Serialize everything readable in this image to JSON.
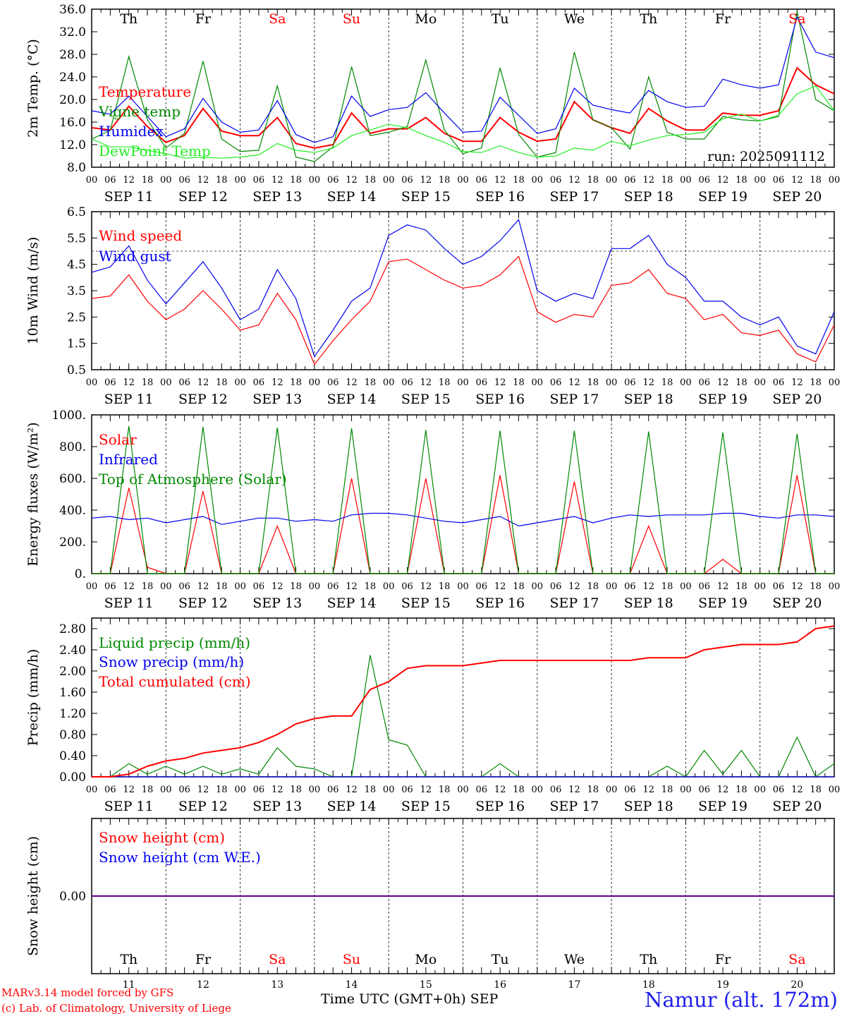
{
  "run_label": "run: 2025091112",
  "footer": {
    "model": "MARv3.14 model forced by GFS",
    "credit": "(c) Lab. of Climatology, University of Liege",
    "time_label": "Time UTC (GMT+0h) SEP",
    "station": "Namur (alt. 172m)"
  },
  "colors": {
    "red": "#ff0000",
    "green": "#008800",
    "blue": "#0000ee",
    "light_green": "#22ee22",
    "weekend": "#ff0000"
  },
  "chart_data": [
    {
      "type": "line",
      "ylabel": "2m Temp. (°C)",
      "ylim": [
        8,
        36
      ],
      "yticks": [
        "8.0",
        "12.0",
        "16.0",
        "20.0",
        "24.0",
        "28.0",
        "32.0",
        "36.0"
      ],
      "x": [
        "2025-09-11 00",
        "2025-09-11 06",
        "2025-09-11 12",
        "2025-09-11 18",
        "2025-09-12 00",
        "2025-09-12 06",
        "2025-09-12 12",
        "2025-09-12 18",
        "2025-09-13 00",
        "2025-09-13 06",
        "2025-09-13 12",
        "2025-09-13 18",
        "2025-09-14 00",
        "2025-09-14 06",
        "2025-09-14 12",
        "2025-09-14 18",
        "2025-09-15 00",
        "2025-09-15 06",
        "2025-09-15 12",
        "2025-09-15 18",
        "2025-09-16 00",
        "2025-09-16 06",
        "2025-09-16 12",
        "2025-09-16 18",
        "2025-09-17 00",
        "2025-09-17 06",
        "2025-09-17 12",
        "2025-09-17 18",
        "2025-09-18 00",
        "2025-09-18 06",
        "2025-09-18 12",
        "2025-09-18 18",
        "2025-09-19 00",
        "2025-09-19 06",
        "2025-09-19 12",
        "2025-09-19 18",
        "2025-09-20 00",
        "2025-09-20 06",
        "2025-09-20 12",
        "2025-09-20 18",
        "2025-09-21 00"
      ],
      "weekdays": [
        "Th",
        "Fr",
        "Sa",
        "Su",
        "Mo",
        "Tu",
        "We",
        "Th",
        "Fr",
        "Sa"
      ],
      "series": [
        {
          "name": "Temperature",
          "color": "red",
          "values": [
            15,
            14.6,
            18.8,
            15.2,
            12.4,
            13.6,
            18.4,
            14.4,
            13.6,
            13.6,
            16.8,
            12.2,
            11.4,
            12,
            17.6,
            14,
            14.8,
            14.8,
            16.8,
            14,
            12.6,
            12.6,
            16.8,
            14.2,
            12.6,
            13,
            19.6,
            16.4,
            15,
            14,
            18.4,
            16.2,
            14.6,
            14.6,
            17.6,
            17.2,
            17.2,
            18,
            25.6,
            22.6,
            21
          ]
        },
        {
          "name": "Vigne temp",
          "color": "green",
          "values": [
            13,
            14.5,
            27.6,
            16.4,
            11.4,
            14,
            26.8,
            13,
            10.8,
            11,
            22.4,
            9.8,
            9,
            11.6,
            25.8,
            13.6,
            14.2,
            15.2,
            27,
            14.6,
            10.4,
            11.4,
            25.6,
            13.8,
            9.8,
            10.6,
            28.4,
            16.4,
            15,
            11.2,
            24,
            14.2,
            13,
            13,
            17,
            16.4,
            16.2,
            17,
            35.6,
            20,
            18
          ]
        },
        {
          "name": "Humidex",
          "color": "blue",
          "values": [
            18,
            17.4,
            20.6,
            17,
            13.4,
            14.8,
            20.2,
            16,
            14.2,
            14.6,
            19.8,
            13.8,
            12.4,
            13.4,
            20.6,
            17,
            18.2,
            18.6,
            21.2,
            17.6,
            14.2,
            14.4,
            20.4,
            17.2,
            14,
            14.8,
            22,
            19,
            18.2,
            17.6,
            21.6,
            19.6,
            18.6,
            18.8,
            23.6,
            22.6,
            22,
            22.6,
            34.6,
            28.4,
            27.4
          ]
        },
        {
          "name": "DewPoint Temp",
          "color": "light_green",
          "values": [
            13,
            11.6,
            11.6,
            11,
            10.4,
            9.6,
            9.8,
            9.6,
            9.8,
            10.2,
            12.2,
            11,
            10.6,
            11.4,
            13.6,
            14.6,
            15.6,
            15,
            13.6,
            12.4,
            10.8,
            10.6,
            11.8,
            10.6,
            9.8,
            10,
            11.4,
            11,
            12.6,
            11.8,
            12.8,
            13.6,
            13.8,
            14.2,
            16.6,
            17.4,
            16.2,
            17.2,
            21,
            22.4,
            18
          ]
        }
      ]
    },
    {
      "type": "line",
      "ylabel": "10m Wind (m/s)",
      "ylim": [
        0.5,
        6.5
      ],
      "yticks": [
        "0.5",
        "1.5",
        "2.5",
        "3.5",
        "4.5",
        "5.5",
        "6.5"
      ],
      "series": [
        {
          "name": "Wind speed",
          "color": "red",
          "values": [
            3.2,
            3.3,
            4.1,
            3.1,
            2.4,
            2.8,
            3.5,
            2.8,
            2,
            2.2,
            3.4,
            2.4,
            0.7,
            1.6,
            2.4,
            3.1,
            4.6,
            4.7,
            4.3,
            3.9,
            3.6,
            3.7,
            4.1,
            4.8,
            2.7,
            2.3,
            2.6,
            2.5,
            3.7,
            3.8,
            4.3,
            3.4,
            3.2,
            2.4,
            2.6,
            1.9,
            1.8,
            2,
            1.1,
            0.8,
            2.2
          ]
        },
        {
          "name": "Wind gust",
          "color": "blue",
          "values": [
            4.2,
            4.4,
            5.2,
            3.9,
            3,
            3.8,
            4.6,
            3.6,
            2.4,
            2.8,
            4.3,
            3.2,
            1,
            2,
            3.1,
            3.6,
            5.6,
            6,
            5.8,
            5.1,
            4.5,
            4.8,
            5.4,
            6.2,
            3.5,
            3.1,
            3.4,
            3.2,
            5.1,
            5.1,
            5.6,
            4.5,
            4,
            3.1,
            3.1,
            2.5,
            2.2,
            2.5,
            1.4,
            1.1,
            2.7
          ]
        }
      ]
    },
    {
      "type": "line",
      "ylabel": "Energy fluxes (W/m²)",
      "ylim": [
        0,
        1000
      ],
      "yticks": [
        "0.",
        "200.",
        "400.",
        "600.",
        "800.",
        "1000."
      ],
      "series": [
        {
          "name": "Solar",
          "color": "red",
          "values": [
            0,
            0,
            540,
            40,
            0,
            0,
            520,
            0,
            0,
            0,
            300,
            0,
            0,
            0,
            600,
            0,
            0,
            0,
            600,
            0,
            0,
            0,
            620,
            0,
            0,
            0,
            580,
            0,
            0,
            0,
            300,
            0,
            0,
            0,
            90,
            0,
            0,
            0,
            620,
            0,
            0
          ]
        },
        {
          "name": "Infrared",
          "color": "blue",
          "values": [
            350,
            360,
            340,
            350,
            320,
            340,
            360,
            310,
            330,
            350,
            350,
            330,
            340,
            330,
            370,
            380,
            380,
            370,
            350,
            330,
            320,
            340,
            360,
            300,
            320,
            340,
            360,
            320,
            350,
            370,
            360,
            370,
            370,
            370,
            380,
            380,
            360,
            350,
            370,
            370,
            360
          ]
        },
        {
          "name": "Top of Atmosphere (Solar)",
          "color": "green",
          "values": [
            0,
            0,
            930,
            0,
            0,
            0,
            925,
            0,
            0,
            0,
            920,
            0,
            0,
            0,
            915,
            0,
            0,
            0,
            905,
            0,
            0,
            0,
            900,
            0,
            0,
            0,
            900,
            0,
            0,
            0,
            895,
            0,
            0,
            0,
            890,
            0,
            0,
            0,
            880,
            0,
            0
          ]
        }
      ]
    },
    {
      "type": "line",
      "ylabel": "Precip (mm/h)",
      "ylim": [
        0,
        3.0
      ],
      "yticks": [
        "0.00",
        "0.40",
        "0.80",
        "1.20",
        "1.60",
        "2.00",
        "2.40",
        "2.80"
      ],
      "series": [
        {
          "name": "Liquid precip (mm/h)",
          "color": "green",
          "values": [
            0,
            0,
            0.25,
            0.05,
            0.2,
            0.05,
            0.2,
            0.05,
            0.15,
            0.05,
            0.55,
            0.2,
            0.15,
            0,
            0,
            2.3,
            0.7,
            0.6,
            0,
            0,
            0,
            0,
            0.25,
            0,
            0,
            0,
            0,
            0,
            0,
            0,
            0,
            0.2,
            0,
            0.5,
            0.05,
            0.5,
            0,
            0,
            0.75,
            0,
            0.25
          ]
        },
        {
          "name": "Snow precip (mm/h)",
          "color": "blue",
          "values": [
            0,
            0,
            0,
            0,
            0,
            0,
            0,
            0,
            0,
            0,
            0,
            0,
            0,
            0,
            0,
            0,
            0,
            0,
            0,
            0,
            0,
            0,
            0,
            0,
            0,
            0,
            0,
            0,
            0,
            0,
            0,
            0,
            0,
            0,
            0,
            0,
            0,
            0,
            0,
            0,
            0
          ]
        },
        {
          "name": "Total cumulated (cm)",
          "color": "red",
          "values": [
            0,
            0,
            0.05,
            0.2,
            0.3,
            0.35,
            0.45,
            0.5,
            0.55,
            0.65,
            0.8,
            1,
            1.1,
            1.15,
            1.15,
            1.65,
            1.8,
            2.05,
            2.1,
            2.1,
            2.1,
            2.15,
            2.2,
            2.2,
            2.2,
            2.2,
            2.2,
            2.2,
            2.2,
            2.2,
            2.25,
            2.25,
            2.25,
            2.4,
            2.45,
            2.5,
            2.5,
            2.5,
            2.55,
            2.8,
            2.85
          ]
        }
      ]
    },
    {
      "type": "line",
      "ylabel": "Snow height (cm)",
      "yticks": [
        "0.00"
      ],
      "day_numbers": [
        "11",
        "12",
        "13",
        "14",
        "15",
        "16",
        "17",
        "18",
        "19",
        "20"
      ],
      "series": [
        {
          "name": "Snow height (cm)",
          "color": "red",
          "values": [
            0,
            0,
            0,
            0,
            0,
            0,
            0,
            0,
            0,
            0,
            0,
            0,
            0,
            0,
            0,
            0,
            0,
            0,
            0,
            0,
            0,
            0,
            0,
            0,
            0,
            0,
            0,
            0,
            0,
            0,
            0,
            0,
            0,
            0,
            0,
            0,
            0,
            0,
            0,
            0,
            0
          ]
        },
        {
          "name": "Snow height (cm W.E.)",
          "color": "blue",
          "values": [
            0,
            0,
            0,
            0,
            0,
            0,
            0,
            0,
            0,
            0,
            0,
            0,
            0,
            0,
            0,
            0,
            0,
            0,
            0,
            0,
            0,
            0,
            0,
            0,
            0,
            0,
            0,
            0,
            0,
            0,
            0,
            0,
            0,
            0,
            0,
            0,
            0,
            0,
            0,
            0,
            0
          ]
        }
      ]
    }
  ],
  "hour_ticks": [
    "00",
    "06",
    "12",
    "18"
  ],
  "date_labels": [
    "SEP 11",
    "SEP 12",
    "SEP 13",
    "SEP 14",
    "SEP 15",
    "SEP 16",
    "SEP 17",
    "SEP 18",
    "SEP 19",
    "SEP 20"
  ],
  "reference_lines": {
    "wind": 5.0
  }
}
